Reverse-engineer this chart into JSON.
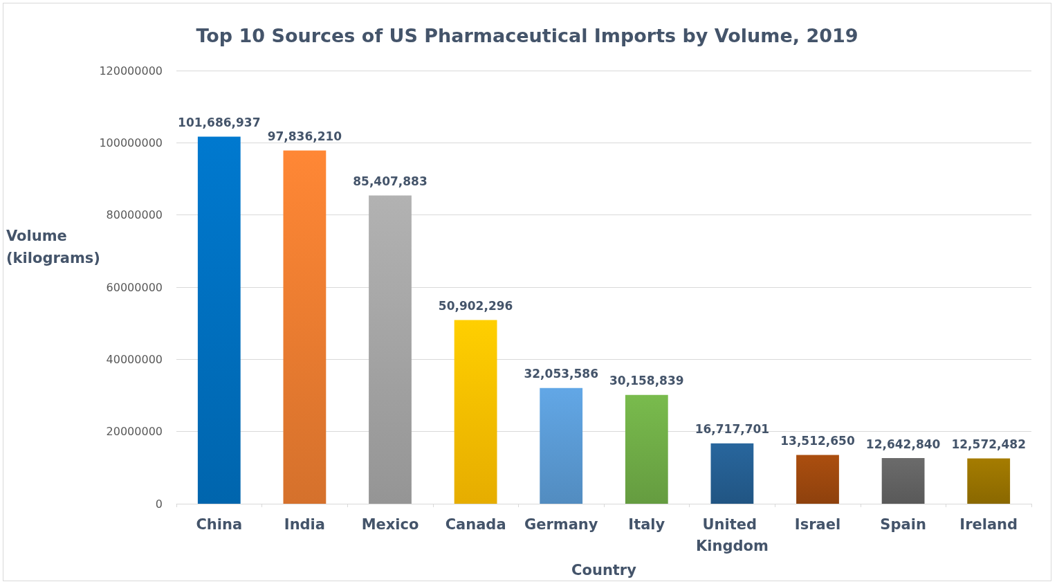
{
  "chart_data": {
    "type": "bar",
    "title": "Top 10 Sources of US Pharmaceutical Imports by Volume, 2019",
    "xlabel": "Country",
    "ylabel": "Volume (kilograms)",
    "categories": [
      "China",
      "India",
      "Mexico",
      "Canada",
      "Germany",
      "Italy",
      "United Kingdom",
      "Israel",
      "Spain",
      "Ireland"
    ],
    "values": [
      101686937,
      97836210,
      85407883,
      50902296,
      32053586,
      30158839,
      16717701,
      13512650,
      12642840,
      12572482
    ],
    "value_labels": [
      "101,686,937",
      "97,836,210",
      "85,407,883",
      "50,902,296",
      "32,053,586",
      "30,158,839",
      "16,717,701",
      "13,512,650",
      "12,642,840",
      "12,572,482"
    ],
    "colors": [
      "#0070c0",
      "#ed7d31",
      "#a5a5a5",
      "#ffc000",
      "#5b9bd5",
      "#70ad47",
      "#255e91",
      "#9e480e",
      "#636363",
      "#997300"
    ],
    "ylim": [
      0,
      120000000
    ],
    "yticks": [
      0,
      20000000,
      40000000,
      60000000,
      80000000,
      100000000,
      120000000
    ],
    "grid": "y"
  }
}
